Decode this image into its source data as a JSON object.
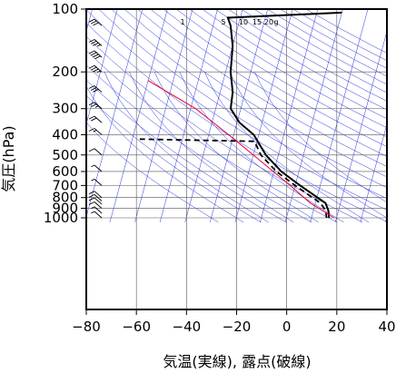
{
  "chart_data": {
    "type": "line",
    "title": "",
    "xlabel": "気温(実線), 露点(破線)",
    "ylabel": "気圧(hPa)",
    "xlim": [
      -80,
      40
    ],
    "ylim": [
      1050,
      100
    ],
    "y_scale": "log",
    "x_ticks": [
      "−80",
      "−60",
      "−40",
      "−20",
      "0",
      "20",
      "40"
    ],
    "y_ticks": [
      {
        "p": 100,
        "label": "100"
      },
      {
        "p": 200,
        "label": "200"
      },
      {
        "p": 300,
        "label": "300"
      },
      {
        "p": 400,
        "label": "400"
      },
      {
        "p": 500,
        "label": "500"
      },
      {
        "p": 600,
        "label": "600"
      },
      {
        "p": 700,
        "label": "700"
      },
      {
        "p": 800,
        "label": "800"
      },
      {
        "p": 900,
        "label": "900"
      },
      {
        "p": 1000,
        "label": "1000"
      }
    ],
    "mixing_ratio_labels": [
      "1",
      "5",
      "10",
      "15",
      "20",
      "g"
    ],
    "colors": {
      "temperature": "#000000",
      "dewpoint": "#000000",
      "parcel": "#e8003a",
      "guide": "#2233dd",
      "grid": "#555555"
    },
    "series": [
      {
        "style": "solid",
        "points": [
          {
            "p": 1000,
            "t": 7
          },
          {
            "p": 925,
            "t": 6
          },
          {
            "p": 850,
            "t": 4
          },
          {
            "p": 700,
            "t": -8
          },
          {
            "p": 600,
            "t": -17
          },
          {
            "p": 500,
            "t": -25
          },
          {
            "p": 400,
            "t": -32
          },
          {
            "p": 350,
            "t": -39
          },
          {
            "p": 300,
            "t": -44
          },
          {
            "p": 250,
            "t": -45
          },
          {
            "p": 200,
            "t": -48
          },
          {
            "p": 150,
            "t": -50
          },
          {
            "p": 120,
            "t": -53
          },
          {
            "p": 110,
            "t": -55
          },
          {
            "p": 104,
            "t": -10
          }
        ]
      },
      {
        "style": "dashed",
        "points": [
          {
            "p": 1000,
            "t": 6
          },
          {
            "p": 925,
            "t": 5
          },
          {
            "p": 850,
            "t": 2
          },
          {
            "p": 700,
            "t": -10
          },
          {
            "p": 600,
            "t": -19
          },
          {
            "p": 500,
            "t": -27
          },
          {
            "p": 430,
            "t": -31
          },
          {
            "p": 420,
            "t": -77
          }
        ]
      },
      {
        "style": "parcel",
        "points": [
          {
            "p": 1000,
            "t": 9
          },
          {
            "p": 850,
            "t": -2
          },
          {
            "p": 700,
            "t": -12
          },
          {
            "p": 500,
            "t": -30
          },
          {
            "p": 400,
            "t": -42
          },
          {
            "p": 300,
            "t": -58
          },
          {
            "p": 220,
            "t": -80
          }
        ]
      }
    ],
    "wind_barbs": [
      {
        "p": 1000,
        "kt": 5
      },
      {
        "p": 950,
        "kt": 5
      },
      {
        "p": 900,
        "kt": 10
      },
      {
        "p": 860,
        "kt": 10
      },
      {
        "p": 830,
        "kt": 10
      },
      {
        "p": 800,
        "kt": 10
      },
      {
        "p": 700,
        "kt": 5
      },
      {
        "p": 600,
        "kt": 5
      },
      {
        "p": 500,
        "kt": 10
      },
      {
        "p": 400,
        "kt": 15
      },
      {
        "p": 350,
        "kt": 20
      },
      {
        "p": 300,
        "kt": 25
      },
      {
        "p": 250,
        "kt": 30
      },
      {
        "p": 200,
        "kt": 35
      },
      {
        "p": 170,
        "kt": 40
      },
      {
        "p": 150,
        "kt": 35
      },
      {
        "p": 120,
        "kt": 30
      }
    ]
  }
}
